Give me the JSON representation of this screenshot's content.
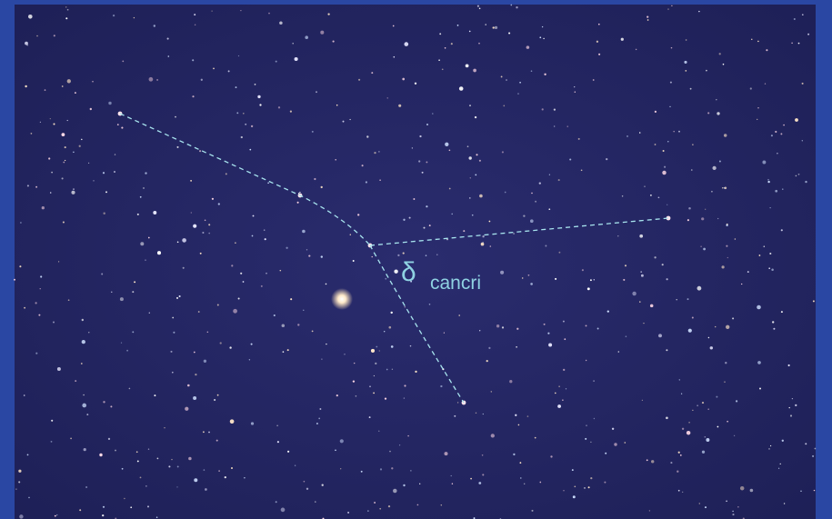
{
  "label": {
    "symbol": "δ",
    "name": "cancri"
  }
}
